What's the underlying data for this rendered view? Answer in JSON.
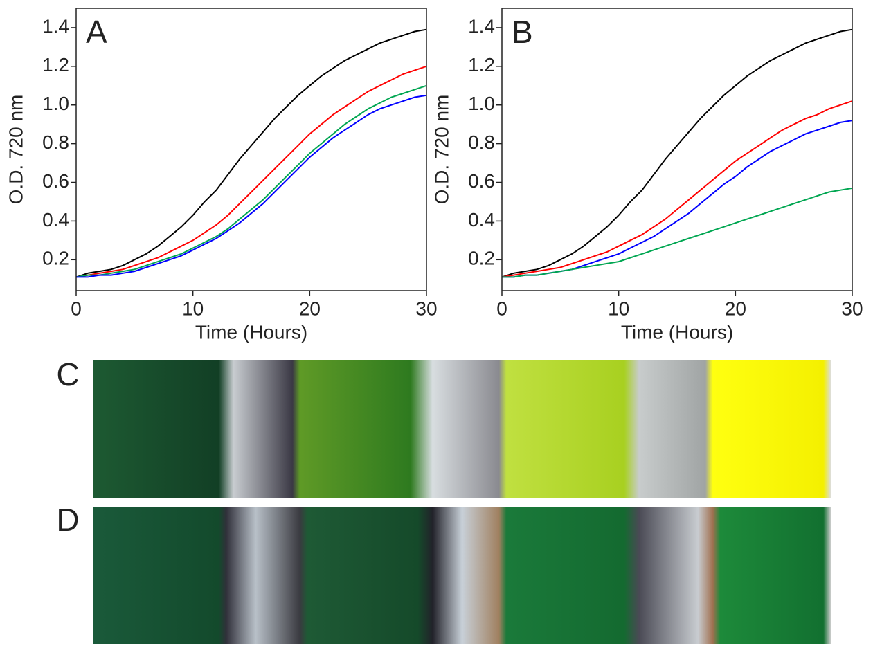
{
  "chart_data": [
    {
      "type": "line",
      "panel_label": "A",
      "xlabel": "Time (Hours)",
      "ylabel": "O.D. 720 nm",
      "x": [
        0,
        1,
        2,
        3,
        4,
        5,
        6,
        7,
        8,
        9,
        10,
        11,
        12,
        13,
        14,
        15,
        16,
        17,
        18,
        19,
        20,
        21,
        22,
        23,
        24,
        25,
        26,
        27,
        28,
        29,
        30
      ],
      "xlim": [
        0,
        30
      ],
      "xticks": [
        0,
        10,
        20,
        30
      ],
      "ylim": [
        0.04,
        1.5
      ],
      "yticks": [
        0.2,
        0.4,
        0.6,
        0.8,
        {
          "value": 1,
          "label": "1.0"
        },
        1.2,
        1.4
      ],
      "series": [
        {
          "color": "#000000",
          "values": [
            0.11,
            0.13,
            0.14,
            0.15,
            0.17,
            0.2,
            0.23,
            0.27,
            0.32,
            0.37,
            0.43,
            0.5,
            0.56,
            0.64,
            0.72,
            0.79,
            0.86,
            0.93,
            0.99,
            1.05,
            1.1,
            1.15,
            1.19,
            1.23,
            1.26,
            1.29,
            1.32,
            1.34,
            1.36,
            1.38,
            1.39
          ]
        },
        {
          "color": "#ff0000",
          "values": [
            0.11,
            0.12,
            0.13,
            0.14,
            0.15,
            0.17,
            0.19,
            0.21,
            0.24,
            0.27,
            0.3,
            0.34,
            0.38,
            0.43,
            0.49,
            0.55,
            0.61,
            0.67,
            0.73,
            0.79,
            0.85,
            0.9,
            0.95,
            0.99,
            1.03,
            1.07,
            1.1,
            1.13,
            1.16,
            1.18,
            1.2
          ]
        },
        {
          "color": "#00a651",
          "values": [
            0.11,
            0.12,
            0.12,
            0.13,
            0.14,
            0.15,
            0.17,
            0.19,
            0.21,
            0.23,
            0.26,
            0.29,
            0.32,
            0.36,
            0.41,
            0.46,
            0.51,
            0.57,
            0.63,
            0.69,
            0.75,
            0.8,
            0.85,
            0.9,
            0.94,
            0.98,
            1.01,
            1.04,
            1.06,
            1.08,
            1.1
          ]
        },
        {
          "color": "#0000ff",
          "values": [
            0.11,
            0.11,
            0.12,
            0.12,
            0.13,
            0.14,
            0.16,
            0.18,
            0.2,
            0.22,
            0.25,
            0.28,
            0.31,
            0.35,
            0.39,
            0.44,
            0.49,
            0.55,
            0.61,
            0.67,
            0.73,
            0.78,
            0.83,
            0.87,
            0.91,
            0.95,
            0.98,
            1.0,
            1.02,
            1.04,
            1.05
          ]
        }
      ]
    },
    {
      "type": "line",
      "panel_label": "B",
      "xlabel": "Time (Hours)",
      "ylabel": "O.D. 720 nm",
      "x": [
        0,
        1,
        2,
        3,
        4,
        5,
        6,
        7,
        8,
        9,
        10,
        11,
        12,
        13,
        14,
        15,
        16,
        17,
        18,
        19,
        20,
        21,
        22,
        23,
        24,
        25,
        26,
        27,
        28,
        29,
        30
      ],
      "xlim": [
        0,
        30
      ],
      "xticks": [
        0,
        10,
        20,
        30
      ],
      "ylim": [
        0.04,
        1.5
      ],
      "yticks": [
        0.2,
        0.4,
        0.6,
        0.8,
        {
          "value": 1,
          "label": "1.0"
        },
        1.2,
        1.4
      ],
      "series": [
        {
          "color": "#000000",
          "values": [
            0.11,
            0.13,
            0.14,
            0.15,
            0.17,
            0.2,
            0.23,
            0.27,
            0.32,
            0.37,
            0.43,
            0.5,
            0.56,
            0.64,
            0.72,
            0.79,
            0.86,
            0.93,
            0.99,
            1.05,
            1.1,
            1.15,
            1.19,
            1.23,
            1.26,
            1.29,
            1.32,
            1.34,
            1.36,
            1.38,
            1.39
          ]
        },
        {
          "color": "#ff0000",
          "values": [
            0.11,
            0.12,
            0.13,
            0.14,
            0.15,
            0.16,
            0.18,
            0.2,
            0.22,
            0.24,
            0.27,
            0.3,
            0.33,
            0.37,
            0.41,
            0.46,
            0.51,
            0.56,
            0.61,
            0.66,
            0.71,
            0.75,
            0.79,
            0.83,
            0.87,
            0.9,
            0.93,
            0.95,
            0.98,
            1.0,
            1.02
          ]
        },
        {
          "color": "#0000ff",
          "values": [
            0.11,
            0.11,
            0.12,
            0.12,
            0.13,
            0.14,
            0.15,
            0.17,
            0.19,
            0.21,
            0.23,
            0.26,
            0.29,
            0.32,
            0.36,
            0.4,
            0.44,
            0.49,
            0.54,
            0.59,
            0.63,
            0.68,
            0.72,
            0.76,
            0.79,
            0.82,
            0.85,
            0.87,
            0.89,
            0.91,
            0.92
          ]
        },
        {
          "color": "#00a651",
          "values": [
            0.11,
            0.11,
            0.12,
            0.12,
            0.13,
            0.14,
            0.15,
            0.16,
            0.17,
            0.18,
            0.19,
            0.21,
            0.23,
            0.25,
            0.27,
            0.29,
            0.31,
            0.33,
            0.35,
            0.37,
            0.39,
            0.41,
            0.43,
            0.45,
            0.47,
            0.49,
            0.51,
            0.53,
            0.55,
            0.56,
            0.57
          ]
        }
      ]
    }
  ],
  "photos": [
    {
      "label": "C"
    },
    {
      "label": "D"
    }
  ]
}
